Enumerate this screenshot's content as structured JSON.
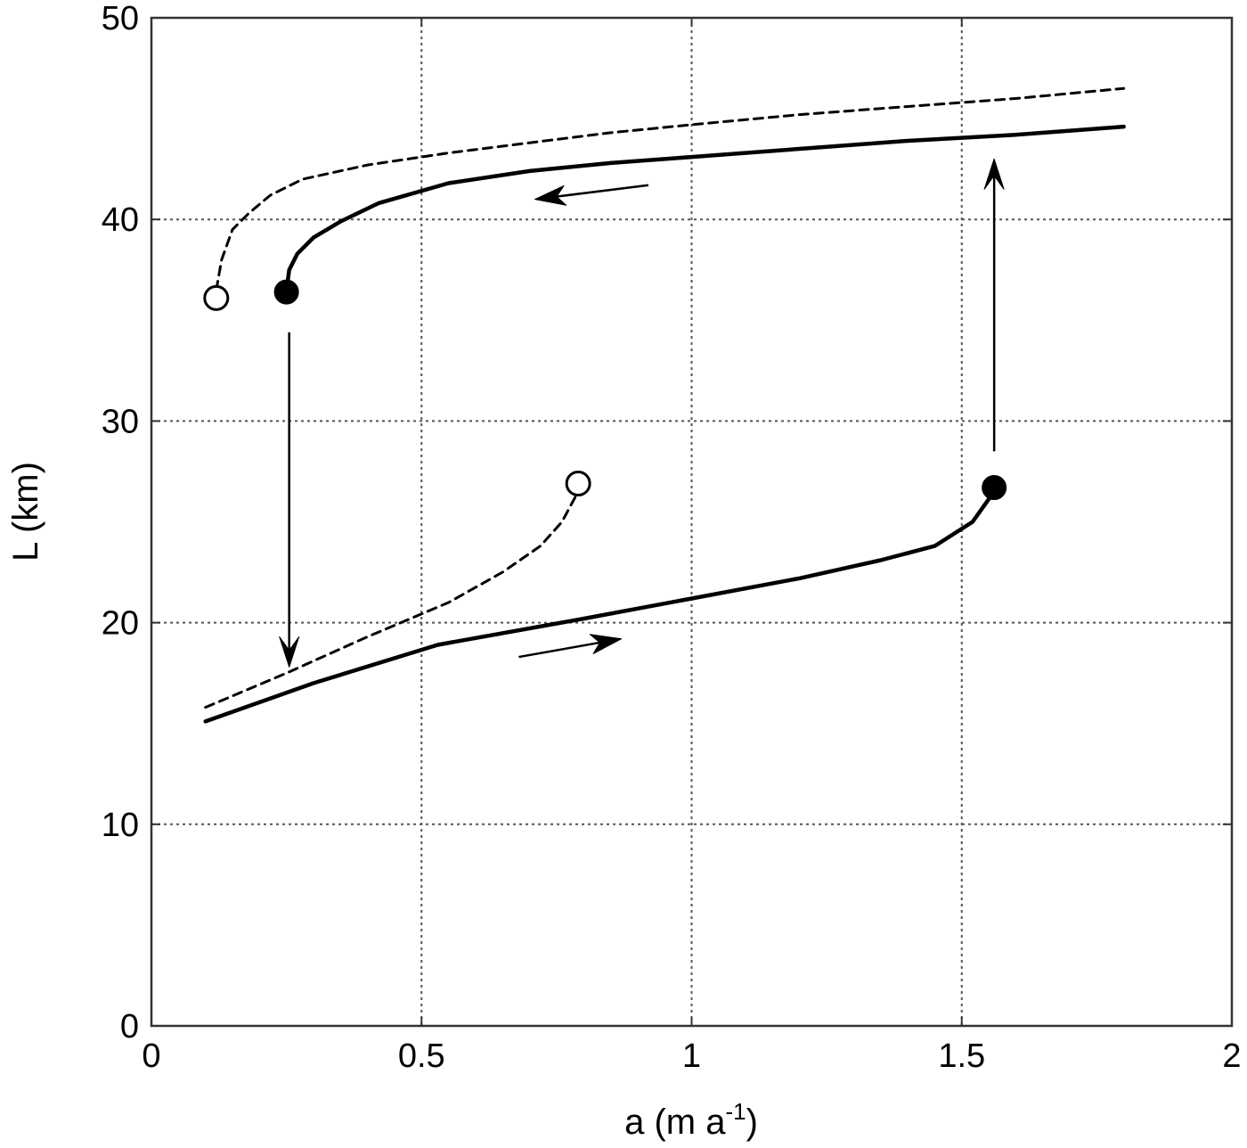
{
  "chart_data": {
    "type": "line",
    "xlabel": "a (m a",
    "xlabel_sup": "-1",
    "xlabel_end": ")",
    "ylabel": "L (km)",
    "xlim": [
      0,
      2
    ],
    "ylim": [
      0,
      50
    ],
    "grid": true,
    "xticks": [
      {
        "value": 0,
        "label": "0"
      },
      {
        "value": 0.5,
        "label": "0.5"
      },
      {
        "value": 1,
        "label": "1"
      },
      {
        "value": 1.5,
        "label": "1.5"
      },
      {
        "value": 2,
        "label": "2"
      }
    ],
    "yticks": [
      {
        "value": 0,
        "label": "0"
      },
      {
        "value": 10,
        "label": "10"
      },
      {
        "value": 20,
        "label": "20"
      },
      {
        "value": 30,
        "label": "30"
      },
      {
        "value": 40,
        "label": "40"
      },
      {
        "value": 50,
        "label": "50"
      }
    ],
    "series": [
      {
        "style": "solid",
        "points": [
          [
            0.25,
            36.5
          ],
          [
            0.255,
            37.5
          ],
          [
            0.27,
            38.3
          ],
          [
            0.3,
            39.1
          ],
          [
            0.35,
            39.9
          ],
          [
            0.42,
            40.8
          ],
          [
            0.55,
            41.8
          ],
          [
            0.7,
            42.4
          ],
          [
            0.85,
            42.8
          ],
          [
            1,
            43.1
          ],
          [
            1.2,
            43.5
          ],
          [
            1.4,
            43.9
          ],
          [
            1.6,
            44.2
          ],
          [
            1.8,
            44.6
          ]
        ]
      },
      {
        "style": "dashed",
        "points": [
          [
            0.12,
            36.5
          ],
          [
            0.13,
            38
          ],
          [
            0.15,
            39.5
          ],
          [
            0.18,
            40.3
          ],
          [
            0.22,
            41.2
          ],
          [
            0.28,
            42
          ],
          [
            0.4,
            42.7
          ],
          [
            0.55,
            43.3
          ],
          [
            0.7,
            43.8
          ],
          [
            0.85,
            44.3
          ],
          [
            1,
            44.7
          ],
          [
            1.2,
            45.2
          ],
          [
            1.4,
            45.6
          ],
          [
            1.6,
            46
          ],
          [
            1.8,
            46.5
          ]
        ]
      },
      {
        "style": "solid",
        "points": [
          [
            0.1,
            15.1
          ],
          [
            0.3,
            17
          ],
          [
            0.53,
            18.9
          ],
          [
            0.8,
            20.2
          ],
          [
            1,
            21.2
          ],
          [
            1.2,
            22.2
          ],
          [
            1.35,
            23.1
          ],
          [
            1.45,
            23.8
          ],
          [
            1.52,
            25
          ],
          [
            1.56,
            26.5
          ]
        ]
      },
      {
        "style": "dashed",
        "points": [
          [
            0.1,
            15.8
          ],
          [
            0.25,
            17.5
          ],
          [
            0.4,
            19.3
          ],
          [
            0.55,
            21
          ],
          [
            0.65,
            22.5
          ],
          [
            0.72,
            23.8
          ],
          [
            0.76,
            25
          ],
          [
            0.79,
            26.5
          ]
        ]
      }
    ],
    "markers": [
      {
        "x": 0.25,
        "y": 36.4,
        "filled": true
      },
      {
        "x": 0.12,
        "y": 36.1,
        "filled": false
      },
      {
        "x": 1.56,
        "y": 26.7,
        "filled": true
      },
      {
        "x": 0.79,
        "y": 26.9,
        "filled": false
      }
    ],
    "arrows": [
      {
        "from": [
          0.92,
          41.7
        ],
        "to": [
          0.71,
          41.0
        ],
        "head": "filled"
      },
      {
        "from": [
          0.68,
          18.3
        ],
        "to": [
          0.87,
          19.2
        ],
        "head": "filled"
      },
      {
        "from": [
          0.255,
          34.4
        ],
        "to": [
          0.255,
          17.8
        ],
        "head": "open"
      },
      {
        "from": [
          1.56,
          28.5
        ],
        "to": [
          1.56,
          43.0
        ],
        "head": "open"
      }
    ]
  }
}
